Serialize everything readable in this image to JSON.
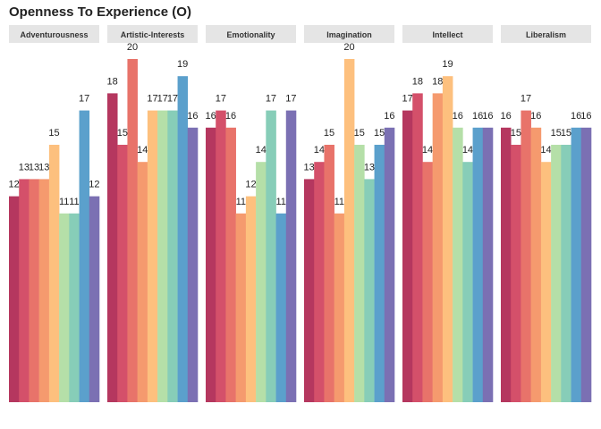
{
  "chart_data": {
    "type": "bar",
    "title": "Openness To Experience (O)",
    "xlabel": "",
    "ylabel": "",
    "ylim": [
      0,
      20
    ],
    "grid": false,
    "legend": "none",
    "palette": [
      "#9E0142",
      "#D53E4F",
      "#F46D43",
      "#FDAE61",
      "#FEE08B",
      "#E6F598",
      "#ABDDA4",
      "#66C2A5",
      "#3288BD",
      "#5E4FA2"
    ],
    "panels": [
      {
        "name": "Adventurousness",
        "values": [
          12,
          13,
          13,
          13,
          15,
          11,
          11,
          17,
          12
        ]
      },
      {
        "name": "Artistic-Interests",
        "values": [
          18,
          15,
          20,
          14,
          17,
          17,
          17,
          19,
          16
        ]
      },
      {
        "name": "Emotionality",
        "values": [
          16,
          17,
          16,
          11,
          12,
          14,
          17,
          11,
          17
        ]
      },
      {
        "name": "Imagination",
        "values": [
          13,
          14,
          15,
          11,
          20,
          15,
          13,
          15,
          16
        ]
      },
      {
        "name": "Intellect",
        "values": [
          17,
          18,
          14,
          18,
          19,
          16,
          14,
          16,
          16
        ]
      },
      {
        "name": "Liberalism",
        "values": [
          16,
          15,
          17,
          16,
          14,
          15,
          15,
          16,
          16
        ]
      }
    ]
  }
}
